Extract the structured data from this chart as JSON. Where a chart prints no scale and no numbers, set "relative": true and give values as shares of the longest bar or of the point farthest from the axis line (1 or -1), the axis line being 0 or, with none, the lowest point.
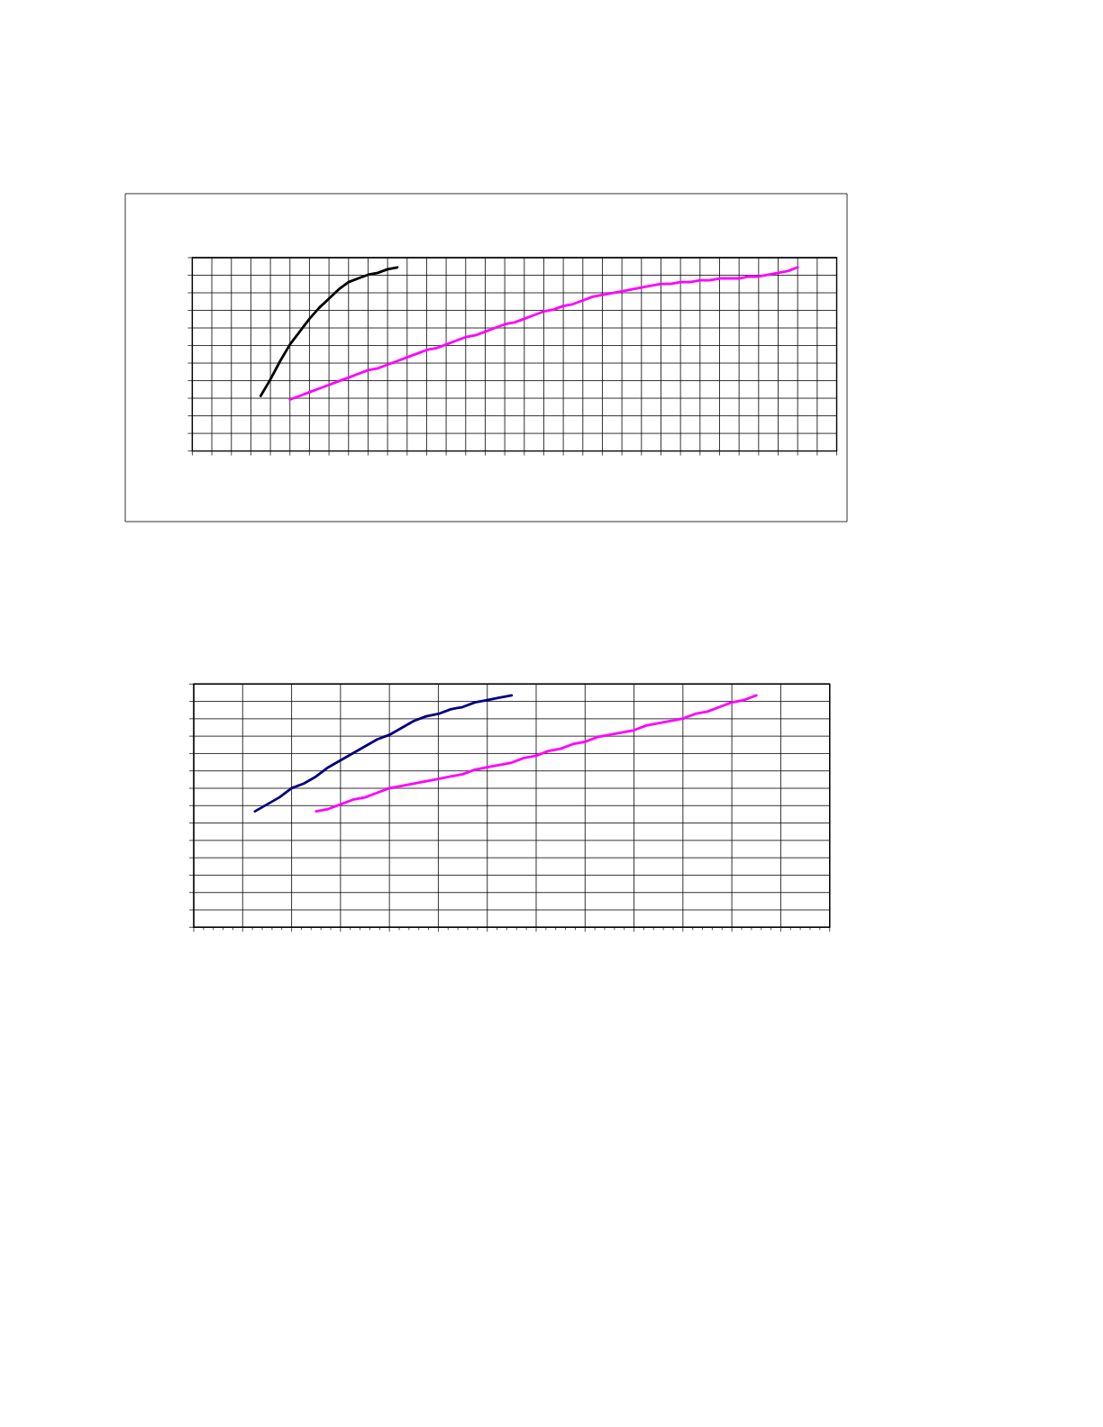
{
  "chart_data": [
    {
      "type": "line",
      "relative": true,
      "grid": true,
      "tick_labels": false,
      "categories": [
        null,
        null,
        null,
        null,
        null,
        null,
        null,
        null,
        null,
        null,
        null,
        null,
        null,
        null,
        null,
        null,
        null,
        null,
        null,
        null,
        null,
        null,
        null,
        null,
        null,
        null,
        null,
        null,
        null,
        null,
        null,
        null,
        null,
        null,
        null,
        null,
        null,
        null,
        null,
        null,
        null,
        null,
        null,
        null,
        null,
        null,
        null,
        null,
        null,
        null,
        null,
        null,
        null,
        null,
        null,
        null,
        null,
        null,
        null,
        null,
        null,
        null,
        null,
        null,
        null,
        null,
        null
      ],
      "series": [
        {
          "color": "#000000",
          "values": [
            null,
            null,
            null,
            null,
            null,
            null,
            null,
            0.3,
            0.39,
            0.49,
            0.58,
            0.65,
            0.72,
            0.78,
            0.83,
            0.88,
            0.92,
            0.94,
            0.96,
            0.97,
            0.99,
            1.0,
            null,
            null,
            null,
            null,
            null,
            null,
            null,
            null,
            null,
            null,
            null,
            null,
            null,
            null,
            null,
            null,
            null,
            null,
            null,
            null,
            null,
            null,
            null,
            null,
            null,
            null,
            null,
            null,
            null,
            null,
            null,
            null,
            null,
            null,
            null,
            null,
            null,
            null,
            null,
            null,
            null,
            null,
            null,
            null,
            null
          ]
        },
        {
          "color": "#ff00ff",
          "values": [
            null,
            null,
            null,
            null,
            null,
            null,
            null,
            null,
            null,
            null,
            0.28,
            0.3,
            0.32,
            0.34,
            0.36,
            0.38,
            0.4,
            0.42,
            0.44,
            0.45,
            0.47,
            0.49,
            0.51,
            0.53,
            0.55,
            0.56,
            0.58,
            0.6,
            0.62,
            0.63,
            0.65,
            0.67,
            0.69,
            0.7,
            0.72,
            0.74,
            0.76,
            0.77,
            0.79,
            0.8,
            0.82,
            0.84,
            0.85,
            0.86,
            0.87,
            0.88,
            0.89,
            0.9,
            0.91,
            0.91,
            0.92,
            0.92,
            0.93,
            0.93,
            0.94,
            0.94,
            0.94,
            0.95,
            0.95,
            0.96,
            0.97,
            0.98,
            1.0,
            null,
            null,
            null,
            null
          ]
        }
      ]
    },
    {
      "type": "line",
      "relative": true,
      "grid": true,
      "tick_labels": false,
      "categories": [
        null,
        null,
        null,
        null,
        null,
        null,
        null,
        null,
        null,
        null,
        null,
        null,
        null,
        null,
        null,
        null,
        null,
        null,
        null,
        null,
        null,
        null,
        null,
        null,
        null,
        null,
        null,
        null,
        null,
        null,
        null,
        null,
        null,
        null,
        null,
        null,
        null,
        null,
        null,
        null,
        null,
        null,
        null,
        null,
        null,
        null,
        null,
        null,
        null,
        null,
        null,
        null,
        null
      ],
      "series": [
        {
          "color": "#000080",
          "values": [
            null,
            null,
            null,
            null,
            null,
            0.5,
            0.53,
            0.56,
            0.6,
            0.62,
            0.65,
            0.69,
            0.72,
            0.75,
            0.78,
            0.81,
            0.83,
            0.86,
            0.89,
            0.91,
            0.92,
            0.94,
            0.95,
            0.97,
            0.98,
            0.99,
            1.0,
            null,
            null,
            null,
            null,
            null,
            null,
            null,
            null,
            null,
            null,
            null,
            null,
            null,
            null,
            null,
            null,
            null,
            null,
            null,
            null,
            null,
            null,
            null,
            null,
            null,
            null
          ]
        },
        {
          "color": "#ff00ff",
          "values": [
            null,
            null,
            null,
            null,
            null,
            null,
            null,
            null,
            null,
            null,
            0.5,
            0.51,
            0.53,
            0.55,
            0.56,
            0.58,
            0.6,
            0.61,
            0.62,
            0.63,
            0.64,
            0.65,
            0.66,
            0.68,
            0.69,
            0.7,
            0.71,
            0.73,
            0.74,
            0.76,
            0.77,
            0.79,
            0.8,
            0.82,
            0.83,
            0.84,
            0.85,
            0.87,
            0.88,
            0.89,
            0.9,
            0.92,
            0.93,
            0.95,
            0.97,
            0.98,
            1.0,
            null,
            null,
            null,
            null,
            null,
            null
          ]
        }
      ]
    }
  ]
}
